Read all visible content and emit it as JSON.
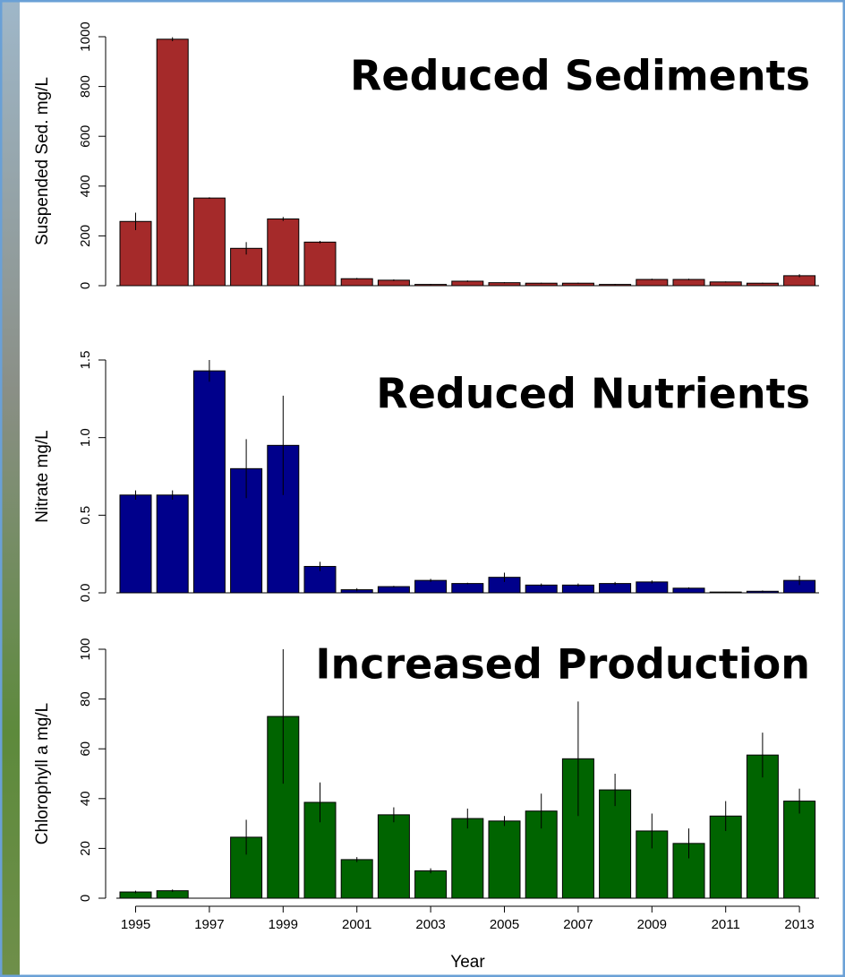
{
  "chart_data": [
    {
      "type": "bar",
      "y_label": "Suspended Sed. mg/L",
      "annotation": "Reduced Sediments",
      "color": "#a52a2a",
      "values": [
        258,
        990,
        352,
        150,
        268,
        175,
        28,
        22,
        5,
        18,
        12,
        10,
        10,
        5,
        25,
        25,
        15,
        10,
        40
      ],
      "errors": [
        35,
        8,
        3,
        25,
        8,
        5,
        3,
        3,
        2,
        3,
        2,
        2,
        2,
        2,
        3,
        3,
        2,
        2,
        6
      ],
      "ylim": [
        0,
        1000
      ],
      "yticks": [
        0,
        200,
        400,
        600,
        800,
        1000
      ]
    },
    {
      "type": "bar",
      "y_label": "Nitrate mg/L",
      "annotation": "Reduced Nutrients",
      "color": "#00008b",
      "values": [
        0.63,
        0.63,
        1.43,
        0.8,
        0.95,
        0.17,
        0.02,
        0.04,
        0.08,
        0.06,
        0.1,
        0.05,
        0.05,
        0.06,
        0.07,
        0.03,
        0.005,
        0.01,
        0.08
      ],
      "errors": [
        0.03,
        0.03,
        0.07,
        0.19,
        0.32,
        0.03,
        0.01,
        0.005,
        0.01,
        0.005,
        0.03,
        0.01,
        0.01,
        0.01,
        0.01,
        0.005,
        0.002,
        0.005,
        0.03
      ],
      "ylim": [
        0,
        1.5
      ],
      "yticks": [
        {
          "value": 0,
          "label": "0.0"
        },
        0.5,
        {
          "value": 1,
          "label": "1.0"
        },
        1.5
      ]
    },
    {
      "type": "bar",
      "y_label": "Chlorophyll a mg/L",
      "x_label": "Year",
      "annotation": "Increased Production",
      "color": "#006400",
      "categories": [
        "1995",
        null,
        "1997",
        null,
        "1999",
        null,
        "2001",
        null,
        "2003",
        null,
        "2005",
        null,
        "2007",
        null,
        "2009",
        null,
        "2011",
        null,
        "2013"
      ],
      "values": [
        2.5,
        3,
        null,
        24.5,
        73,
        38.5,
        15.5,
        33.5,
        11,
        32,
        31,
        35,
        56,
        43.5,
        27,
        22,
        33,
        57.5,
        39
      ],
      "errors": [
        0.5,
        0.5,
        null,
        7,
        27,
        8,
        1,
        3,
        1,
        4,
        2,
        7,
        23,
        6.5,
        7,
        6,
        6,
        9,
        5
      ],
      "ylim": [
        0,
        100
      ],
      "yticks": [
        0,
        20,
        40,
        60,
        80,
        100
      ]
    }
  ]
}
